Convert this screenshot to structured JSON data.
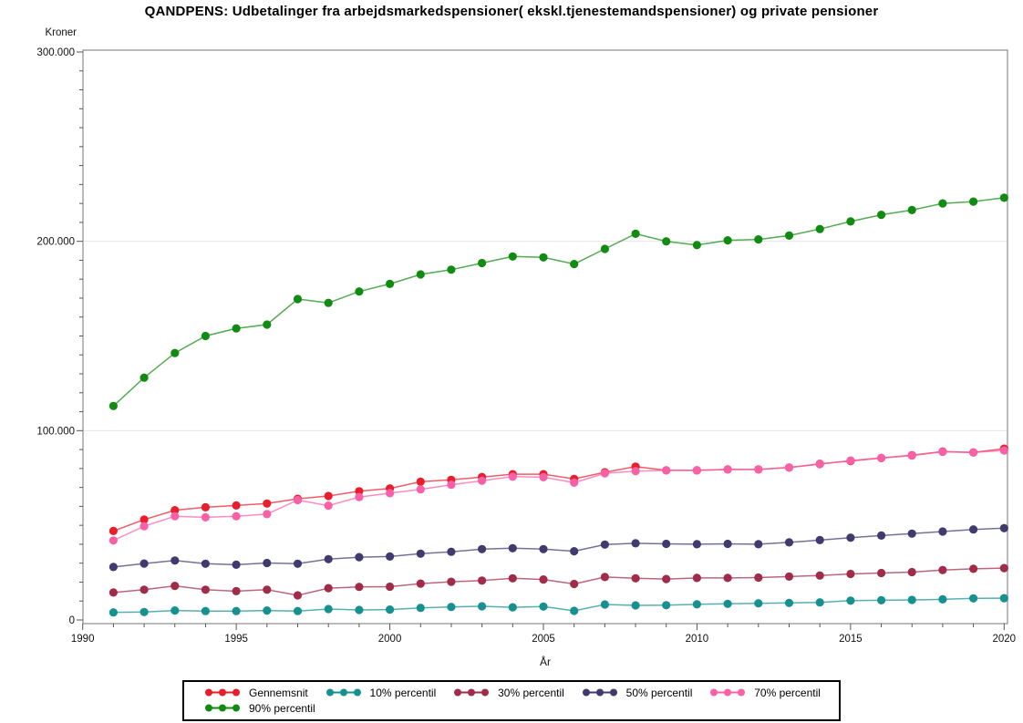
{
  "title": "QANDPENS: Udbetalinger fra arbejdsmarkedspensioner( ekskl.tjenestemandspensioner) og private pensioner",
  "chart_data": {
    "type": "line",
    "title": "QANDPENS: Udbetalinger fra arbejdsmarkedspensioner( ekskl.tjenestemandspensioner) og private pensioner",
    "xlabel": "År",
    "ylabel": "Kroner",
    "xlim": [
      1990,
      2020
    ],
    "ylim": [
      0,
      300000
    ],
    "grid": true,
    "gridline_values": [
      100000,
      200000
    ],
    "legend_position": "bottom",
    "x_tick_years": [
      1990,
      1995,
      2000,
      2005,
      2010,
      2015,
      2020
    ],
    "x_tick_labels": [
      "1990",
      "1995",
      "2000",
      "2005",
      "2010",
      "2015",
      "2020"
    ],
    "x_minor_step": 1,
    "y_tick_values": [
      0,
      100000,
      200000,
      300000
    ],
    "y_tick_labels": [
      "0",
      "100.000",
      "200.000",
      "300.000"
    ],
    "y_minor_step": 10000,
    "x": [
      1991,
      1992,
      1993,
      1994,
      1995,
      1996,
      1997,
      1998,
      1999,
      2000,
      2001,
      2002,
      2003,
      2004,
      2005,
      2006,
      2007,
      2008,
      2009,
      2010,
      2011,
      2012,
      2013,
      2014,
      2015,
      2016,
      2017,
      2018,
      2019,
      2020
    ],
    "series": [
      {
        "name": "Gennemsnit",
        "color": "#e81e2c",
        "values": [
          47000,
          53000,
          58000,
          59500,
          60500,
          61500,
          64000,
          65500,
          68000,
          69500,
          73000,
          74000,
          75500,
          77000,
          77000,
          74500,
          78000,
          81000,
          79000,
          79000,
          79500,
          79500,
          80500,
          82500,
          84000,
          85500,
          87000,
          89000,
          88500,
          90500
        ]
      },
      {
        "name": "10% percentil",
        "color": "#169190",
        "values": [
          4000,
          4200,
          5000,
          4700,
          4700,
          5000,
          4700,
          5800,
          5300,
          5500,
          6400,
          6900,
          7200,
          6700,
          7100,
          4800,
          8200,
          7700,
          7800,
          8300,
          8500,
          8800,
          9000,
          9300,
          10200,
          10400,
          10600,
          10900,
          11400,
          11500
        ]
      },
      {
        "name": "30% percentil",
        "color": "#a02c4a",
        "values": [
          14500,
          16000,
          18000,
          16000,
          15200,
          16000,
          13000,
          16800,
          17500,
          17600,
          19200,
          20200,
          20800,
          22000,
          21400,
          19000,
          22700,
          22000,
          21600,
          22200,
          22200,
          22400,
          22900,
          23500,
          24300,
          24800,
          25300,
          26400,
          27000,
          27400
        ]
      },
      {
        "name": "50% percentil",
        "color": "#403a6e",
        "values": [
          28000,
          29800,
          31400,
          29700,
          29200,
          30100,
          29700,
          32100,
          33200,
          33500,
          35000,
          36000,
          37400,
          37900,
          37400,
          36300,
          39800,
          40500,
          40200,
          40000,
          40200,
          40000,
          41000,
          42200,
          43500,
          44600,
          45600,
          46700,
          47800,
          48500
        ]
      },
      {
        "name": "70% percentil",
        "color": "#fa60a6",
        "values": [
          42000,
          49500,
          54800,
          54200,
          54800,
          55900,
          63300,
          60400,
          64900,
          67000,
          69000,
          71400,
          73600,
          75700,
          75400,
          72500,
          77500,
          78600,
          79000,
          79000,
          79500,
          79500,
          80500,
          82300,
          84200,
          85600,
          86800,
          88800,
          88500,
          89500
        ]
      },
      {
        "name": "90% percentil",
        "color": "#118b11",
        "values": [
          113000,
          128000,
          141000,
          150000,
          154000,
          156000,
          169500,
          167500,
          173500,
          177500,
          182500,
          185000,
          188500,
          192000,
          191500,
          188000,
          196000,
          204000,
          200000,
          198000,
          200500,
          201000,
          203000,
          206500,
          210500,
          214000,
          216500,
          220000,
          221000,
          223000
        ]
      }
    ]
  },
  "legend": {
    "row1_series_indexes": [
      0,
      1,
      2,
      3,
      4
    ],
    "row2_series_indexes": [
      5
    ]
  }
}
